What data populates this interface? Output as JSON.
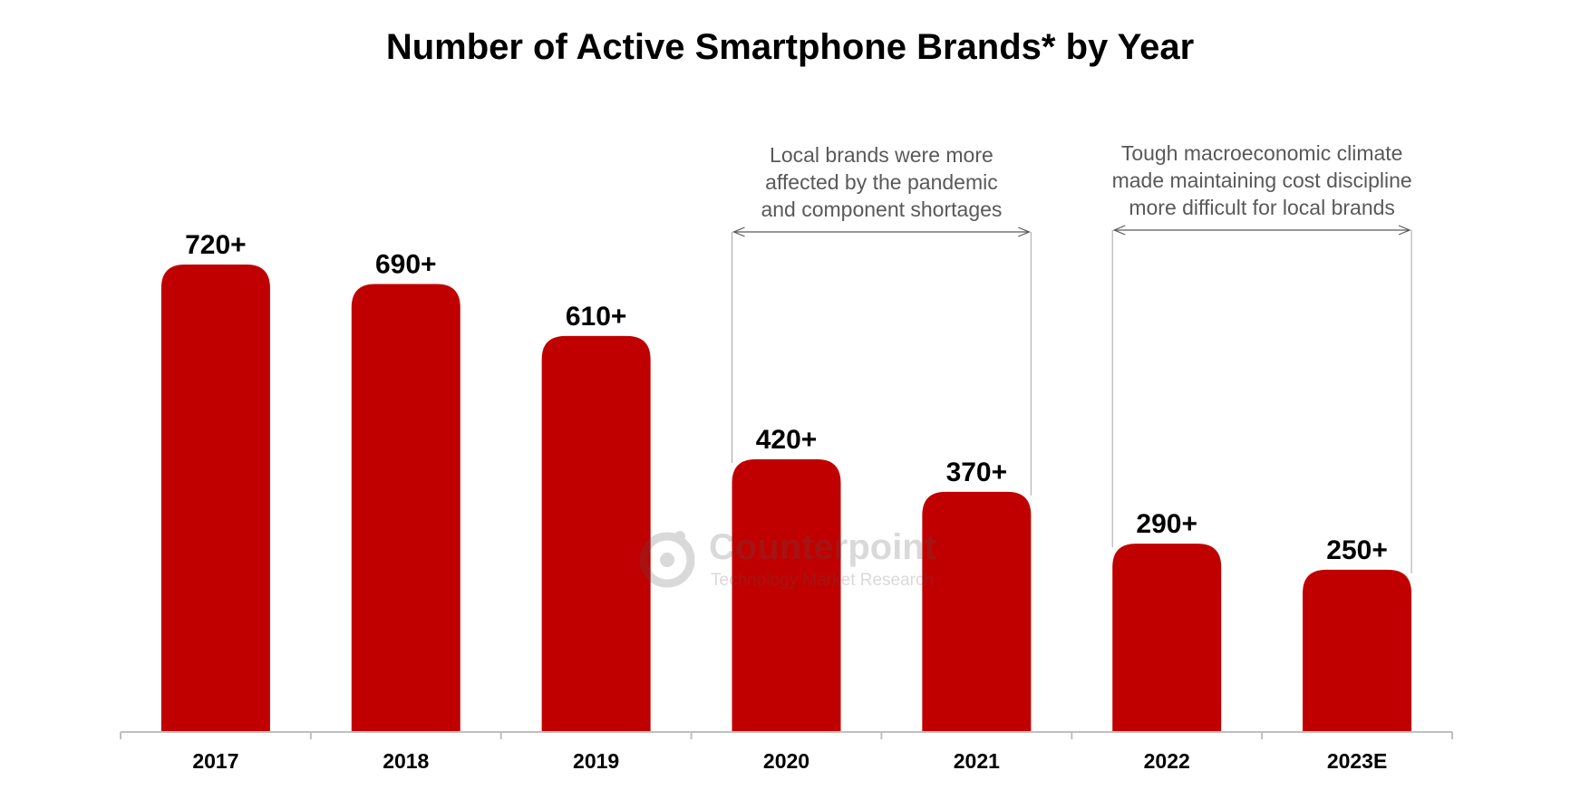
{
  "chart_data": {
    "type": "bar",
    "title": "Number of Active Smartphone Brands* by Year",
    "categories": [
      "2017",
      "2018",
      "2019",
      "2020",
      "2021",
      "2022",
      "2023E"
    ],
    "values": [
      720,
      690,
      610,
      420,
      370,
      290,
      250
    ],
    "data_labels": [
      "720+",
      "690+",
      "610+",
      "420+",
      "370+",
      "290+",
      "250+"
    ],
    "xlabel": "",
    "ylabel": "",
    "ylim": [
      0,
      820
    ],
    "grid": false,
    "legend": "none",
    "bar_color": "#C00000",
    "annotations": [
      {
        "lines": [
          "Local brands were more",
          "affected by the pandemic",
          "and component shortages"
        ],
        "span": [
          "2020",
          "2021"
        ]
      },
      {
        "lines": [
          "Tough macroeconomic climate",
          "made maintaining cost discipline",
          "more difficult for local brands"
        ],
        "span": [
          "2022",
          "2023E"
        ]
      }
    ]
  },
  "watermark": {
    "name": "Counterpoint",
    "tagline": "Technology Market Research",
    "icon": "counterpoint-logo-icon"
  }
}
